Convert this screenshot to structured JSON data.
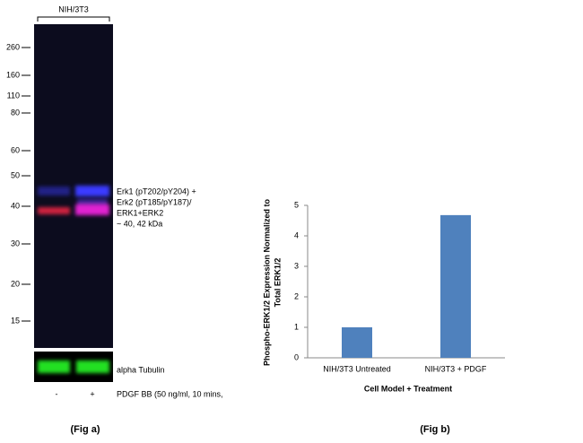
{
  "blot": {
    "sample": "NIH/3T3",
    "markers": [
      "260",
      "160",
      "110",
      "80",
      "60",
      "50",
      "40",
      "30",
      "20",
      "15"
    ],
    "annotation": [
      "Erk1 (pT202/pY204) +",
      "Erk2 (pT185/pY187)/",
      "ERK1+ERK2",
      "~ 40, 42 kDa"
    ],
    "loading_control": "alpha Tubulin",
    "lanes": [
      "-",
      "+"
    ],
    "treatment": "PDGF BB (50 ng/ml, 10 mins,",
    "caption": "(Fig a)"
  },
  "chart_data": {
    "type": "bar",
    "categories": [
      "NIH/3T3 Untreated",
      "NIH/3T3 + PDGF"
    ],
    "values": [
      1.0,
      4.68
    ],
    "color": "#4f81bd",
    "ylim": [
      0,
      5
    ],
    "yticks": [
      0,
      1,
      2,
      3,
      4,
      5
    ],
    "ylabel": [
      "Phospho-ERK1/2 Expression Normalized to",
      "Total ERK1/2"
    ],
    "xlabel": "Cell Model + Treatment",
    "caption": "(Fig b)"
  }
}
